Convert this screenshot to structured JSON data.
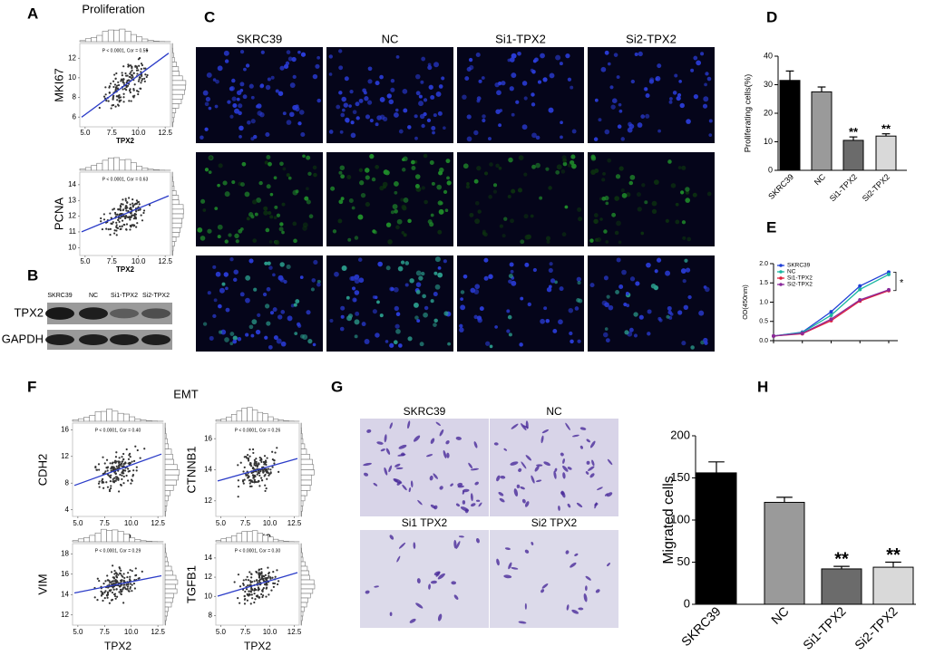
{
  "panel_labels": [
    "A",
    "B",
    "C",
    "D",
    "E",
    "F",
    "G",
    "H"
  ],
  "section_titles": {
    "proliferation": "Proliferation",
    "emt": "EMT"
  },
  "scatter_plots": [
    {
      "ylabel": "MKI67",
      "xlabel": "TPX2",
      "annotation": "P < 0.0001, Cor = 0.55",
      "xlim": [
        4.5,
        13
      ],
      "ylim": [
        5,
        13.5
      ],
      "xticks": [
        {
          "value": 5,
          "label": "5.0"
        },
        7.5,
        {
          "value": 10,
          "label": "10.0"
        },
        12.5
      ],
      "yticks": [
        6,
        8,
        10,
        12
      ]
    },
    {
      "ylabel": "PCNA",
      "xlabel": "TPX2",
      "annotation": "P < 0.0001, Cor = 0.63",
      "xlim": [
        4.5,
        13
      ],
      "ylim": [
        9.5,
        14.8
      ],
      "xticks": [
        {
          "value": 5,
          "label": "5.0"
        },
        7.5,
        {
          "value": 10,
          "label": "10.0"
        },
        12.5
      ],
      "yticks": [
        10,
        11,
        12,
        13,
        14
      ]
    },
    {
      "ylabel": "CDH2",
      "xlabel": "TPX2",
      "annotation": "P < 0.0001, Cor = 0.40",
      "xlim": [
        4.5,
        13
      ],
      "ylim": [
        3,
        17
      ],
      "xticks": [
        {
          "value": 5,
          "label": "5.0"
        },
        7.5,
        {
          "value": 10,
          "label": "10.0"
        },
        12.5
      ],
      "yticks": [
        4,
        8,
        12,
        16
      ]
    },
    {
      "ylabel": "CTNNB1",
      "xlabel": "TPX2",
      "annotation": "P < 0.0001, Cor = 0.26",
      "xlim": [
        4.5,
        13
      ],
      "ylim": [
        11,
        17
      ],
      "xticks": [
        {
          "value": 5,
          "label": "5.0"
        },
        7.5,
        {
          "value": 10,
          "label": "10.0"
        },
        12.5
      ],
      "yticks": [
        12,
        14,
        16
      ]
    },
    {
      "ylabel": "VIM",
      "xlabel": "TPX2",
      "annotation": "P < 0.0001, Cor = 0.29",
      "xlim": [
        4.5,
        13
      ],
      "ylim": [
        11,
        19
      ],
      "xticks": [
        {
          "value": 5,
          "label": "5.0"
        },
        7.5,
        {
          "value": 10,
          "label": "10.0"
        },
        12.5
      ],
      "yticks": [
        12,
        14,
        16,
        18
      ]
    },
    {
      "ylabel": "TGFB1",
      "xlabel": "TPX2",
      "annotation": "P < 0.0001, Cor = 0.30",
      "xlim": [
        4.5,
        13
      ],
      "ylim": [
        7,
        15.5
      ],
      "xticks": [
        {
          "value": 5,
          "label": "5.0"
        },
        7.5,
        {
          "value": 10,
          "label": "10.0"
        },
        12.5
      ],
      "yticks": [
        8,
        10,
        12,
        14
      ]
    }
  ],
  "western_blot": {
    "lanes": [
      "SKRC39",
      "NC",
      "Si1-TPX2",
      "Si2-TPX2"
    ],
    "rows": [
      "TPX2",
      "GAPDH"
    ]
  },
  "immunofluorescence": {
    "columns": [
      "SKRC39",
      "NC",
      "Si1-TPX2",
      "Si2-TPX2"
    ]
  },
  "transwell": {
    "images": [
      "SKRC39",
      "NC",
      "Si1 TPX2",
      "Si2 TPX2"
    ]
  },
  "chart_data": [
    {
      "type": "bar",
      "ylabel": "Proliferating cells(%)",
      "categories": [
        "SKRC39",
        "NC",
        "Si1-TPX2",
        "Si2-TPX2"
      ],
      "values": [
        31.5,
        27.5,
        10.5,
        12
      ],
      "errors": [
        3.3,
        1.7,
        1.2,
        0.8
      ],
      "colors": [
        "#000000",
        "#9a9a9a",
        "#6b6b6b",
        "#d9d9d9"
      ],
      "ylim": [
        0,
        40
      ],
      "yticks": [
        0,
        10,
        20,
        30,
        40
      ],
      "annotations": [
        {
          "index": 2,
          "text": "**"
        },
        {
          "index": 3,
          "text": "**"
        }
      ]
    },
    {
      "type": "line",
      "ylabel": "OD(450nm)",
      "categories": [
        null,
        null,
        null,
        null,
        null
      ],
      "ylim": [
        0,
        2
      ],
      "yticks": [
        {
          "value": 0,
          "label": "0.0"
        },
        0.5,
        {
          "value": 1,
          "label": "1.0"
        },
        1.5,
        {
          "value": 2,
          "label": "2.0"
        }
      ],
      "legend": "top-left",
      "annotation": "*",
      "series": [
        {
          "name": "SKRC39",
          "color": "#1f3fd6",
          "values": [
            0.12,
            0.22,
            0.75,
            1.42,
            1.78
          ]
        },
        {
          "name": "NC",
          "color": "#19b6a0",
          "values": [
            0.12,
            0.21,
            0.66,
            1.33,
            1.72
          ]
        },
        {
          "name": "Si1-TPX2",
          "color": "#e0203c",
          "values": [
            0.12,
            0.18,
            0.52,
            1.03,
            1.3
          ]
        },
        {
          "name": "Si2-TPX2",
          "color": "#8a2a9a",
          "values": [
            0.12,
            0.19,
            0.56,
            1.06,
            1.32
          ]
        }
      ]
    },
    {
      "type": "bar",
      "ylabel": "Migrated cells",
      "categories": [
        "SKRC39",
        "NC",
        "Si1-TPX2",
        "Si2-TPX2"
      ],
      "values": [
        156,
        121,
        42,
        44
      ],
      "errors": [
        13,
        6,
        3,
        6
      ],
      "colors": [
        "#000000",
        "#9a9a9a",
        "#6b6b6b",
        "#d9d9d9"
      ],
      "ylim": [
        0,
        200
      ],
      "yticks": [
        0,
        50,
        100,
        150,
        200
      ],
      "annotations": [
        {
          "index": 2,
          "text": "**"
        },
        {
          "index": 3,
          "text": "**"
        }
      ]
    }
  ]
}
